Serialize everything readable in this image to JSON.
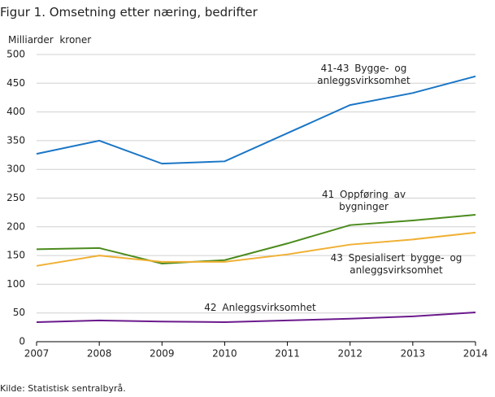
{
  "chart_data": {
    "type": "line",
    "title": "Figur 1. Omsetning etter næring, bedrifter",
    "y_label": "Milliarder  kroner",
    "source": "Kilde: Statistisk sentralbyrå.",
    "categories": [
      "2007",
      "2008",
      "2009",
      "2010",
      "2011",
      "2012",
      "2013",
      "2014"
    ],
    "series": [
      {
        "name": "41-43 Bygge- og anleggsvirksomhet",
        "color": "#1a76c6",
        "values": [
          327,
          350,
          310,
          314,
          363,
          412,
          433,
          462
        ]
      },
      {
        "name": "41 Oppføring av bygninger",
        "color": "#4b8b1d",
        "values": [
          161,
          163,
          136,
          142,
          171,
          203,
          211,
          221
        ]
      },
      {
        "name": "43 Spesialisert bygge- og anleggsvirksomhet",
        "color": "#f0b033",
        "values": [
          132,
          150,
          139,
          139,
          152,
          169,
          178,
          190
        ]
      },
      {
        "name": "42 Anleggsvirksomhet",
        "color": "#6b1a8c",
        "values": [
          34,
          37,
          35,
          34,
          37,
          40,
          44,
          51
        ]
      }
    ],
    "ylim": [
      0,
      500
    ],
    "yticks": [
      0,
      50,
      100,
      150,
      200,
      250,
      300,
      350,
      400,
      450,
      500
    ],
    "grid": true
  }
}
